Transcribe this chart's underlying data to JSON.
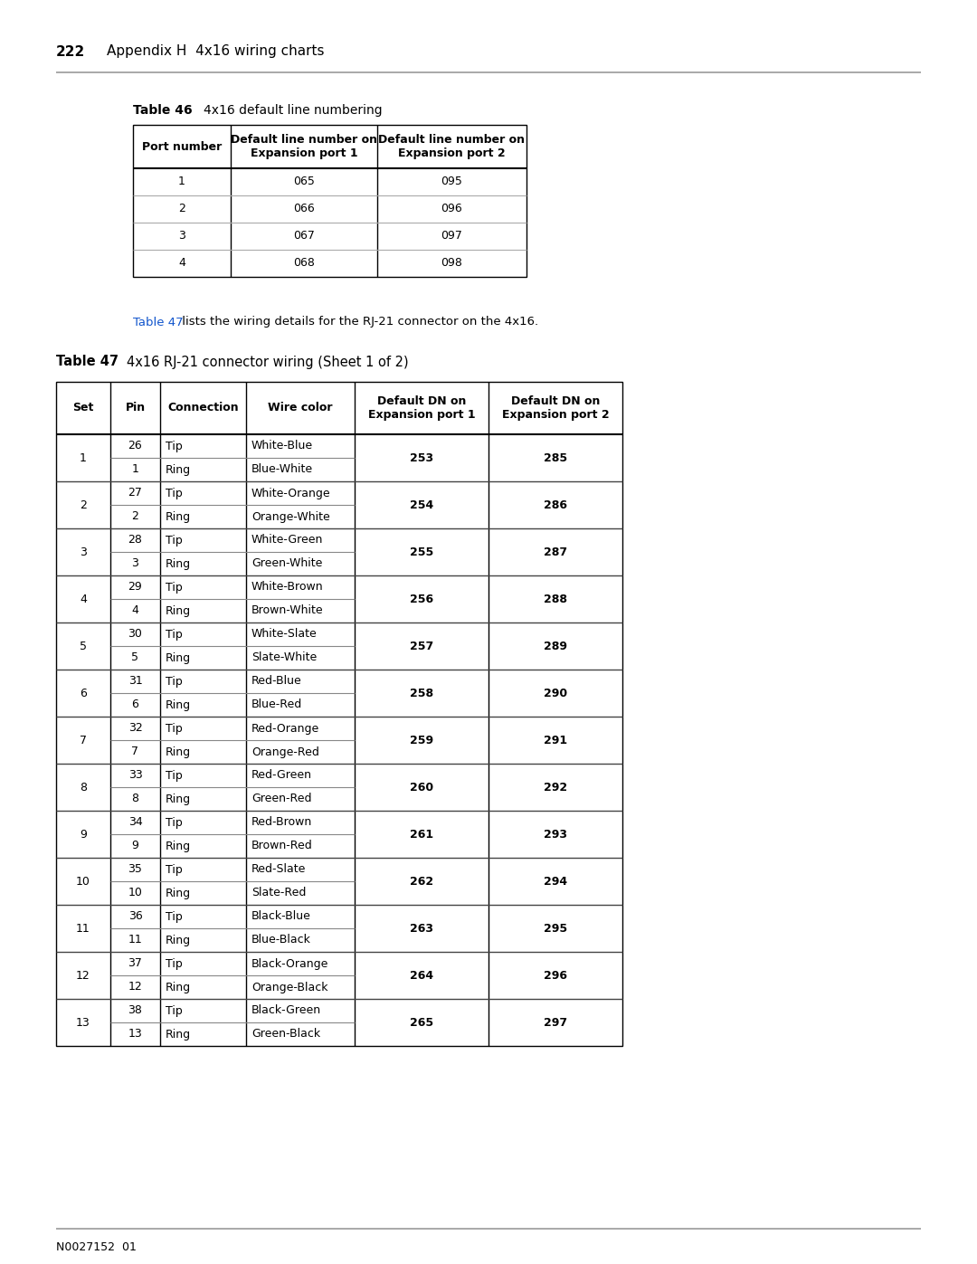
{
  "page_number": "222",
  "page_header": "Appendix H  4x16 wiring charts",
  "footer_text": "N0027152  01",
  "bg_color": "#ffffff",
  "table46_label": "Table 46",
  "table46_title": "4x16 default line numbering",
  "table46_headers": [
    "Port number",
    "Default line number on\nExpansion port 1",
    "Default line number on\nExpansion port 2"
  ],
  "table46_rows": [
    [
      "1",
      "065",
      "095"
    ],
    [
      "2",
      "066",
      "096"
    ],
    [
      "3",
      "067",
      "097"
    ],
    [
      "4",
      "068",
      "098"
    ]
  ],
  "link_text": "Table 47",
  "link_color": "#1155cc",
  "body_text": " lists the wiring details for the RJ-21 connector on the 4x16.",
  "table47_label": "Table 47",
  "table47_title": "4x16 RJ-21 connector wiring (Sheet 1 of 2)",
  "table47_headers": [
    "Set",
    "Pin",
    "Connection",
    "Wire color",
    "Default DN on\nExpansion port 1",
    "Default DN on\nExpansion port 2"
  ],
  "table47_rows": [
    [
      "1",
      "26",
      "Tip",
      "White-Blue",
      "253",
      "285"
    ],
    [
      "1",
      "1",
      "Ring",
      "Blue-White",
      "253",
      "285"
    ],
    [
      "2",
      "27",
      "Tip",
      "White-Orange",
      "254",
      "286"
    ],
    [
      "2",
      "2",
      "Ring",
      "Orange-White",
      "254",
      "286"
    ],
    [
      "3",
      "28",
      "Tip",
      "White-Green",
      "255",
      "287"
    ],
    [
      "3",
      "3",
      "Ring",
      "Green-White",
      "255",
      "287"
    ],
    [
      "4",
      "29",
      "Tip",
      "White-Brown",
      "256",
      "288"
    ],
    [
      "4",
      "4",
      "Ring",
      "Brown-White",
      "256",
      "288"
    ],
    [
      "5",
      "30",
      "Tip",
      "White-Slate",
      "257",
      "289"
    ],
    [
      "5",
      "5",
      "Ring",
      "Slate-White",
      "257",
      "289"
    ],
    [
      "6",
      "31",
      "Tip",
      "Red-Blue",
      "258",
      "290"
    ],
    [
      "6",
      "6",
      "Ring",
      "Blue-Red",
      "258",
      "290"
    ],
    [
      "7",
      "32",
      "Tip",
      "Red-Orange",
      "259",
      "291"
    ],
    [
      "7",
      "7",
      "Ring",
      "Orange-Red",
      "259",
      "291"
    ],
    [
      "8",
      "33",
      "Tip",
      "Red-Green",
      "260",
      "292"
    ],
    [
      "8",
      "8",
      "Ring",
      "Green-Red",
      "260",
      "292"
    ],
    [
      "9",
      "34",
      "Tip",
      "Red-Brown",
      "261",
      "293"
    ],
    [
      "9",
      "9",
      "Ring",
      "Brown-Red",
      "261",
      "293"
    ],
    [
      "10",
      "35",
      "Tip",
      "Red-Slate",
      "262",
      "294"
    ],
    [
      "10",
      "10",
      "Ring",
      "Slate-Red",
      "262",
      "294"
    ],
    [
      "11",
      "36",
      "Tip",
      "Black-Blue",
      "263",
      "295"
    ],
    [
      "11",
      "11",
      "Ring",
      "Blue-Black",
      "263",
      "295"
    ],
    [
      "12",
      "37",
      "Tip",
      "Black-Orange",
      "264",
      "296"
    ],
    [
      "12",
      "12",
      "Ring",
      "Orange-Black",
      "264",
      "296"
    ],
    [
      "13",
      "38",
      "Tip",
      "Black-Green",
      "265",
      "297"
    ],
    [
      "13",
      "13",
      "Ring",
      "Green-Black",
      "265",
      "297"
    ]
  ]
}
